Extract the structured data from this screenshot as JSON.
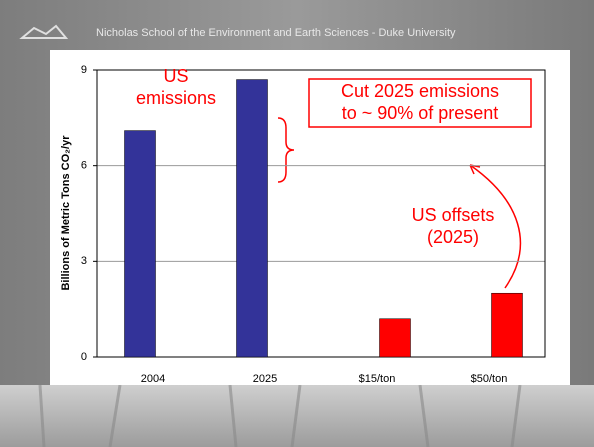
{
  "header": "Nicholas School of the Environment and Earth Sciences  -  Duke University",
  "chart_data": {
    "type": "bar",
    "y_label": "Billions of Metric Tons CO₂/yr",
    "categories": [
      "2004",
      "2025",
      "$15/ton",
      "$50/ton"
    ],
    "series": [
      {
        "color": "#333399",
        "values": [
          7.1,
          8.7,
          null,
          null
        ]
      },
      {
        "color": "#ff0000",
        "values": [
          null,
          null,
          1.2,
          2.0
        ]
      }
    ],
    "ylim": [
      0,
      9
    ],
    "yticks": [
      0,
      3,
      6,
      9
    ],
    "grid": true,
    "annotations": [
      {
        "lines": [
          "US",
          "emissions"
        ],
        "color": "#ff0000"
      },
      {
        "lines": [
          "Cut 2025 emissions",
          "to ~ 90% of present"
        ],
        "color": "#ff0000",
        "boxed": true
      },
      {
        "lines": [
          "US offsets",
          "(2025)"
        ],
        "color": "#ff0000"
      }
    ]
  }
}
